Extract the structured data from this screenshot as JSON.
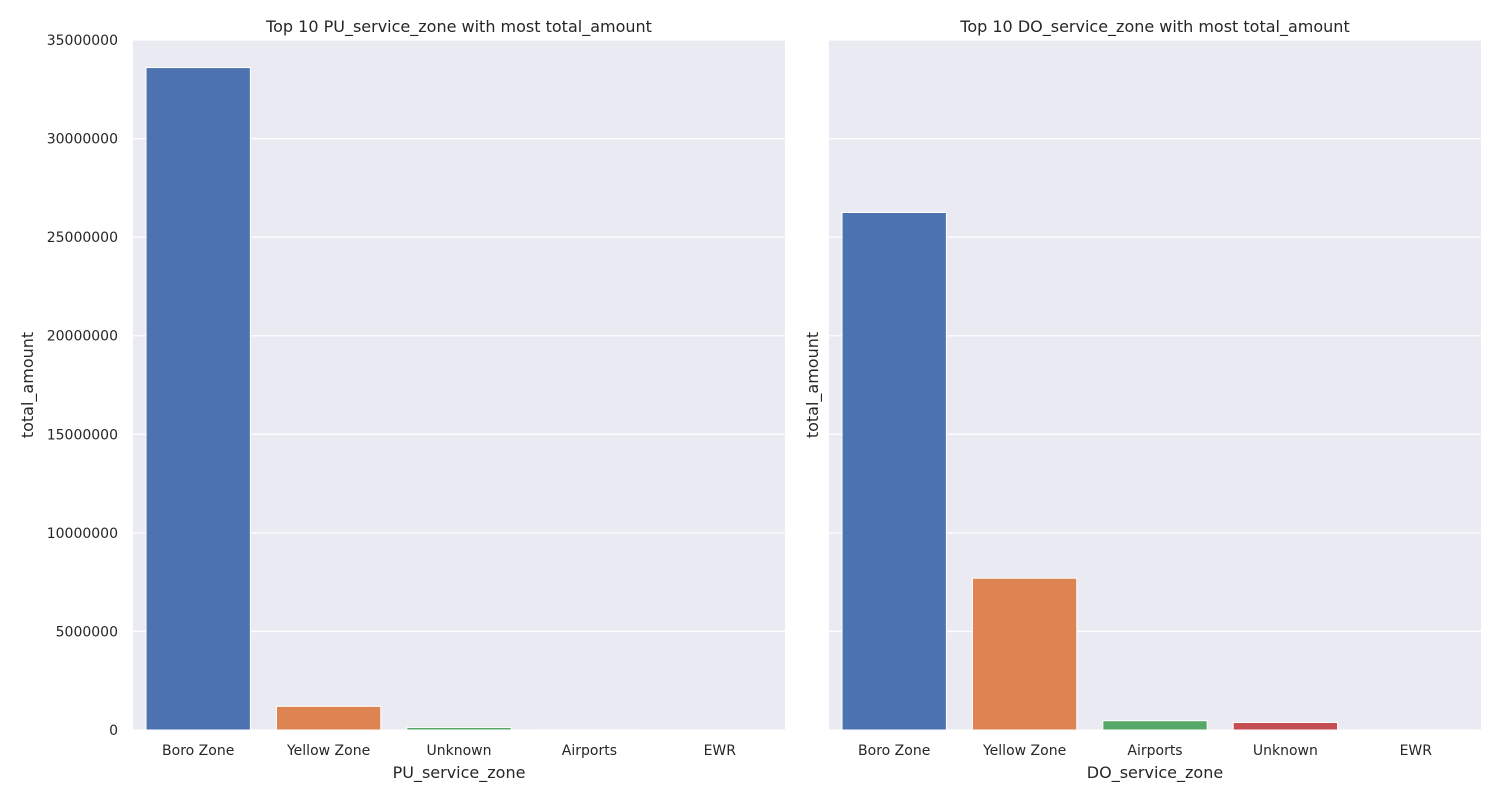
{
  "chart_data": [
    {
      "type": "bar",
      "title": "Top 10 PU_service_zone with most total_amount",
      "xlabel": "PU_service_zone",
      "ylabel": "total_amount",
      "categories": [
        "Boro Zone",
        "Yellow Zone",
        "Unknown",
        "Airports",
        "EWR"
      ],
      "values": [
        33600000,
        1200000,
        130000,
        6000,
        2000
      ],
      "ylim": [
        0,
        35000000
      ],
      "yticks": [
        0,
        5000000,
        10000000,
        15000000,
        20000000,
        25000000,
        30000000,
        35000000
      ],
      "ytick_labels": [
        "0",
        "5000000",
        "10000000",
        "15000000",
        "20000000",
        "25000000",
        "30000000",
        "35000000"
      ],
      "colors": [
        "#4c72b0",
        "#dd8452",
        "#55a868",
        "#c44e52",
        "#8172b3"
      ],
      "grid": true
    },
    {
      "type": "bar",
      "title": "Top 10 DO_service_zone with most total_amount",
      "xlabel": "DO_service_zone",
      "ylabel": "total_amount",
      "categories": [
        "Boro Zone",
        "Yellow Zone",
        "Airports",
        "Unknown",
        "EWR"
      ],
      "values": [
        26250000,
        7700000,
        470000,
        380000,
        6000
      ],
      "ylim": [
        0,
        35000000
      ],
      "yticks": [
        0,
        5000000,
        10000000,
        15000000,
        20000000,
        25000000,
        30000000,
        35000000
      ],
      "ytick_labels": [],
      "colors": [
        "#4c72b0",
        "#dd8452",
        "#55a868",
        "#c44e52",
        "#8172b3"
      ],
      "grid": true,
      "sharey": true
    }
  ]
}
